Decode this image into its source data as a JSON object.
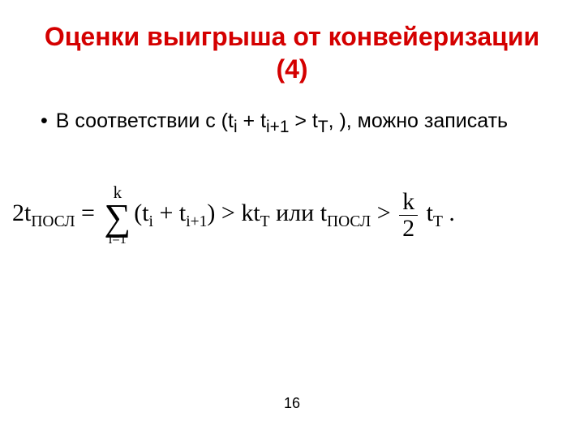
{
  "title": {
    "text": "Оценки выигрыша от конвейеризации (4)",
    "color": "#d40000",
    "fontsize": 32
  },
  "bullet": {
    "marker": "•",
    "text_before": "В соответствии с (t",
    "sub1": "i",
    "plus": " + t",
    "sub2": "i+1",
    "gt": " > t",
    "sub3": "T",
    "text_after": ", ), можно записать",
    "fontsize": 25,
    "color": "#000000"
  },
  "formula": {
    "lhs_coef": "2t",
    "lhs_sub": "ПОСЛ",
    "eq": " = ",
    "sigma_top": "k",
    "sigma_sym": "∑",
    "sigma_bot": "i=1",
    "sum_open": "(t",
    "sum_s1": "i",
    "sum_plus": " + t",
    "sum_s2": "i+1",
    "sum_close": ")",
    "gt1": " > kt",
    "kt_sub": "T",
    "or": " или ",
    "rhs_t": "t",
    "rhs_sub": "ПОСЛ",
    "gt2": " > ",
    "frac_top": "k",
    "frac_bot": "2",
    "tail_t": " t",
    "tail_sub": "T",
    "dot": " .",
    "fontsize": 30,
    "color": "#000000",
    "sigma_fontsize": 46
  },
  "page_number": {
    "value": "16",
    "fontsize": 18,
    "color": "#000000"
  },
  "background_color": "#ffffff"
}
